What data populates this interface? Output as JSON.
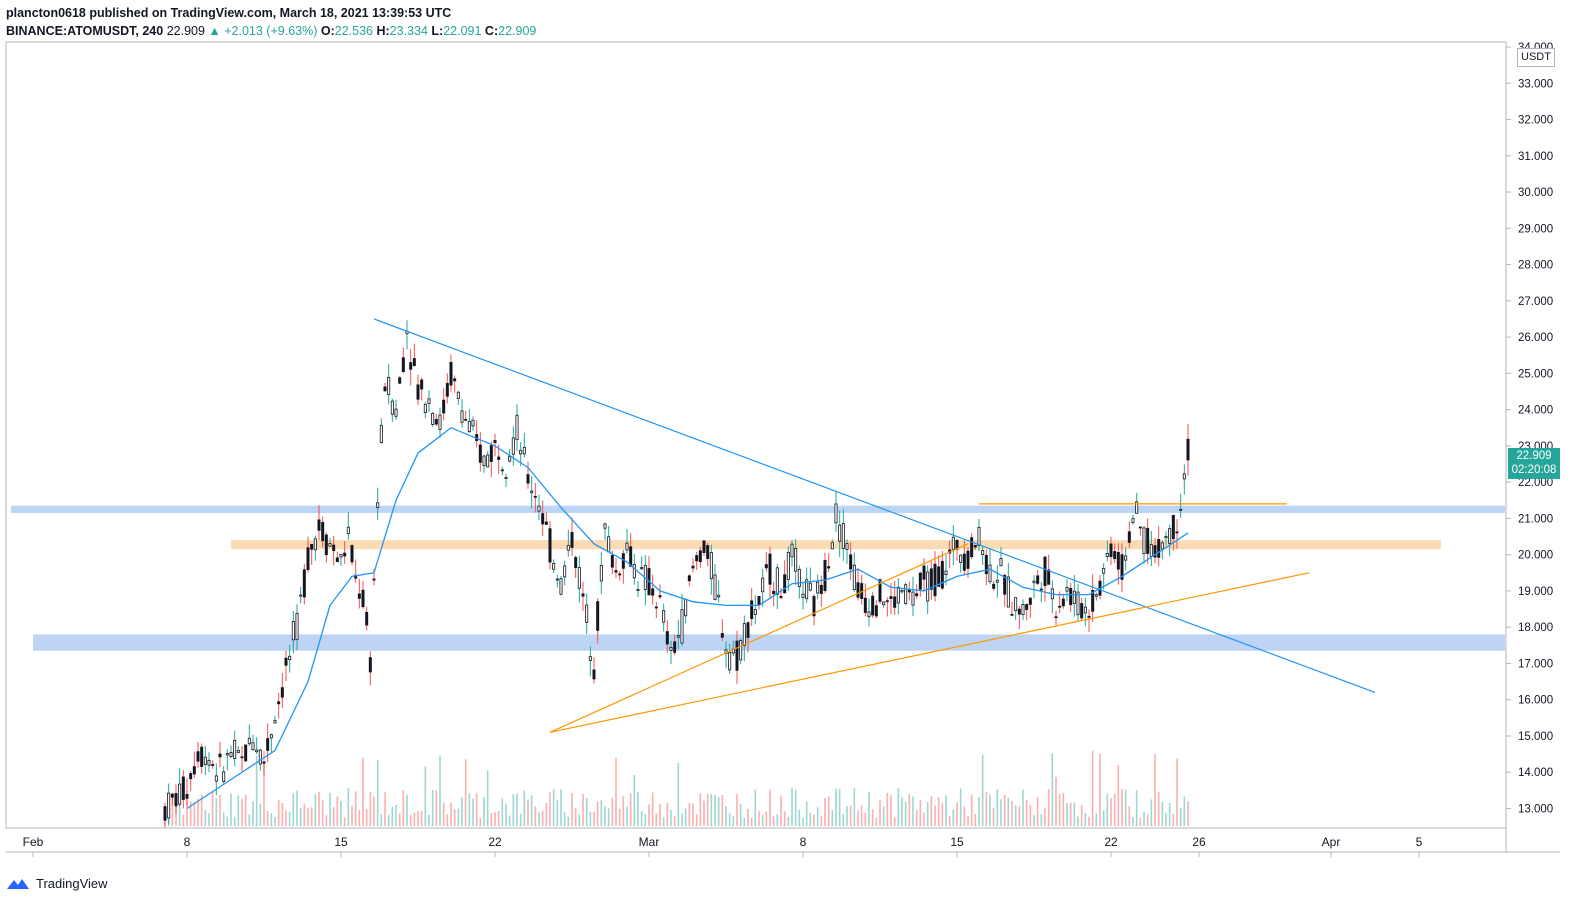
{
  "header": {
    "publisher_line": "plancton0618 published on TradingView.com, March 18, 2021 13:39:53 UTC",
    "symbol": "BINANCE:ATOMUSDT, 240",
    "last": "22.909",
    "change": "▲ +2.013 (+9.63%)",
    "o_label": "O:",
    "o": "22.536",
    "h_label": "H:",
    "h": "23.334",
    "l_label": "L:",
    "l": "22.091",
    "c_label": "C:",
    "c": "22.909"
  },
  "footer": {
    "brand": "TradingView"
  },
  "price_axis": {
    "unit": "USDT",
    "last_price": "22.909",
    "countdown": "02:20:08"
  },
  "colors": {
    "up": "#26a69a",
    "down": "#ef5350",
    "ma": "#2196f3",
    "trend_blue": "#2196f3",
    "trend_orange": "#ff9800",
    "zone_blue": "#b2cdf3",
    "zone_orange": "#f9d5a7"
  },
  "chart_data": {
    "type": "candlestick",
    "symbol": "BINANCE:ATOMUSDT",
    "timeframe": "240",
    "ylim": [
      12.6,
      34.0
    ],
    "y_ticks": [
      "13.000",
      "14.000",
      "15.000",
      "16.000",
      "17.000",
      "18.000",
      "19.000",
      "20.000",
      "21.000",
      "22.000",
      "23.000",
      "24.000",
      "25.000",
      "26.000",
      "27.000",
      "28.000",
      "29.000",
      "30.000",
      "31.000",
      "32.000",
      "33.000",
      "34.000"
    ],
    "x_ticks": [
      {
        "label": "Feb",
        "date": "2021-02-01"
      },
      {
        "label": "8",
        "date": "2021-02-08"
      },
      {
        "label": "15",
        "date": "2021-02-15"
      },
      {
        "label": "22",
        "date": "2021-02-22"
      },
      {
        "label": "Mar",
        "date": "2021-03-01"
      },
      {
        "label": "8",
        "date": "2021-03-08"
      },
      {
        "label": "15",
        "date": "2021-03-15"
      },
      {
        "label": "22",
        "date": "2021-03-22"
      },
      {
        "label": "26",
        "date": "2021-03-26"
      },
      {
        "label": "Apr",
        "date": "2021-04-01"
      },
      {
        "label": "5",
        "date": "2021-04-05"
      }
    ],
    "price_path": [
      [
        "2021-02-07 00:00",
        13.0
      ],
      [
        "2021-02-08 00:00",
        13.6
      ],
      [
        "2021-02-08 12:00",
        14.6
      ],
      [
        "2021-02-09 00:00",
        14.4
      ],
      [
        "2021-02-09 12:00",
        14.0
      ],
      [
        "2021-02-10 00:00",
        14.5
      ],
      [
        "2021-02-10 12:00",
        14.3
      ],
      [
        "2021-02-11 00:00",
        15.0
      ],
      [
        "2021-02-11 12:00",
        14.3
      ],
      [
        "2021-02-12 00:00",
        15.6
      ],
      [
        "2021-02-12 12:00",
        16.8
      ],
      [
        "2021-02-13 00:00",
        18.0
      ],
      [
        "2021-02-13 12:00",
        20.0
      ],
      [
        "2021-02-14 00:00",
        20.8
      ],
      [
        "2021-02-14 12:00",
        20.3
      ],
      [
        "2021-02-15 00:00",
        19.8
      ],
      [
        "2021-02-15 08:00",
        20.5
      ],
      [
        "2021-02-15 16:00",
        19.3
      ],
      [
        "2021-02-16 00:00",
        18.8
      ],
      [
        "2021-02-16 08:00",
        17.1
      ],
      [
        "2021-02-16 16:00",
        21.5
      ],
      [
        "2021-02-17 00:00",
        24.8
      ],
      [
        "2021-02-17 12:00",
        24.0
      ],
      [
        "2021-02-18 00:00",
        26.2
      ],
      [
        "2021-02-18 12:00",
        24.6
      ],
      [
        "2021-02-19 00:00",
        24.3
      ],
      [
        "2021-02-19 12:00",
        23.6
      ],
      [
        "2021-02-20 00:00",
        25.0
      ],
      [
        "2021-02-20 12:00",
        24.0
      ],
      [
        "2021-02-21 00:00",
        23.2
      ],
      [
        "2021-02-21 12:00",
        22.6
      ],
      [
        "2021-02-22 00:00",
        23.0
      ],
      [
        "2021-02-22 12:00",
        22.7
      ],
      [
        "2021-02-23 00:00",
        23.4
      ],
      [
        "2021-02-23 12:00",
        22.1
      ],
      [
        "2021-02-24 00:00",
        21.5
      ],
      [
        "2021-02-24 12:00",
        20.2
      ],
      [
        "2021-02-25 00:00",
        19.2
      ],
      [
        "2021-02-25 12:00",
        20.5
      ],
      [
        "2021-02-26 00:00",
        18.8
      ],
      [
        "2021-02-26 12:00",
        17.1
      ],
      [
        "2021-02-27 00:00",
        20.7
      ],
      [
        "2021-02-27 12:00",
        19.5
      ],
      [
        "2021-02-28 00:00",
        20.2
      ],
      [
        "2021-02-28 12:00",
        19.4
      ],
      [
        "2021-03-01 00:00",
        19.2
      ],
      [
        "2021-03-01 12:00",
        18.6
      ],
      [
        "2021-03-02 00:00",
        17.2
      ],
      [
        "2021-03-02 12:00",
        18.1
      ],
      [
        "2021-03-03 00:00",
        19.6
      ],
      [
        "2021-03-03 12:00",
        20.3
      ],
      [
        "2021-03-04 00:00",
        19.2
      ],
      [
        "2021-03-04 12:00",
        17.5
      ],
      [
        "2021-03-05 00:00",
        17.2
      ],
      [
        "2021-03-05 12:00",
        18.2
      ],
      [
        "2021-03-06 00:00",
        18.7
      ],
      [
        "2021-03-06 12:00",
        19.6
      ],
      [
        "2021-03-07 00:00",
        19.0
      ],
      [
        "2021-03-07 12:00",
        19.9
      ],
      [
        "2021-03-08 00:00",
        19.1
      ],
      [
        "2021-03-08 12:00",
        18.6
      ],
      [
        "2021-03-09 00:00",
        19.5
      ],
      [
        "2021-03-09 12:00",
        21.1
      ],
      [
        "2021-03-10 00:00",
        20.3
      ],
      [
        "2021-03-10 12:00",
        19.0
      ],
      [
        "2021-03-11 00:00",
        18.7
      ],
      [
        "2021-03-11 12:00",
        18.9
      ],
      [
        "2021-03-12 00:00",
        18.6
      ],
      [
        "2021-03-12 12:00",
        19.0
      ],
      [
        "2021-03-13 00:00",
        18.8
      ],
      [
        "2021-03-13 12:00",
        19.2
      ],
      [
        "2021-03-14 00:00",
        19.3
      ],
      [
        "2021-03-14 12:00",
        19.7
      ],
      [
        "2021-03-15 00:00",
        20.3
      ],
      [
        "2021-03-15 12:00",
        20.0
      ],
      [
        "2021-03-16 00:00",
        20.5
      ],
      [
        "2021-03-16 12:00",
        19.5
      ],
      [
        "2021-03-17 00:00",
        19.4
      ],
      [
        "2021-03-17 12:00",
        18.7
      ],
      [
        "2021-03-18 00:00",
        18.4
      ],
      [
        "2021-03-18 12:00",
        19.1
      ],
      [
        "2021-03-19 00:00",
        19.6
      ],
      [
        "2021-03-19 12:00",
        18.6
      ],
      [
        "2021-03-20 00:00",
        19.0
      ],
      [
        "2021-03-20 12:00",
        18.6
      ],
      [
        "2021-03-21 00:00",
        18.5
      ],
      [
        "2021-03-21 12:00",
        19.2
      ],
      [
        "2021-03-22 00:00",
        20.3
      ],
      [
        "2021-03-22 12:00",
        19.6
      ],
      [
        "2021-03-23 00:00",
        21.1
      ],
      [
        "2021-03-23 12:00",
        20.5
      ],
      [
        "2021-03-24 00:00",
        20.0
      ],
      [
        "2021-03-24 12:00",
        20.5
      ],
      [
        "2021-03-25 00:00",
        20.9
      ],
      [
        "2021-03-25 12:00",
        22.9
      ]
    ],
    "moving_average": [
      [
        "2021-02-08 00:00",
        13.0
      ],
      [
        "2021-02-10 00:00",
        13.8
      ],
      [
        "2021-02-12 00:00",
        14.6
      ],
      [
        "2021-02-13 12:00",
        16.5
      ],
      [
        "2021-02-14 12:00",
        18.6
      ],
      [
        "2021-02-15 12:00",
        19.4
      ],
      [
        "2021-02-16 12:00",
        19.5
      ],
      [
        "2021-02-17 12:00",
        21.5
      ],
      [
        "2021-02-18 12:00",
        22.8
      ],
      [
        "2021-02-20 00:00",
        23.5
      ],
      [
        "2021-02-22 00:00",
        23.0
      ],
      [
        "2021-02-23 12:00",
        22.4
      ],
      [
        "2021-02-25 00:00",
        21.3
      ],
      [
        "2021-02-26 12:00",
        20.3
      ],
      [
        "2021-02-28 00:00",
        19.8
      ],
      [
        "2021-03-01 12:00",
        19.0
      ],
      [
        "2021-03-03 00:00",
        18.7
      ],
      [
        "2021-03-04 12:00",
        18.6
      ],
      [
        "2021-03-06 00:00",
        18.6
      ],
      [
        "2021-03-07 12:00",
        19.2
      ],
      [
        "2021-03-09 00:00",
        19.3
      ],
      [
        "2021-03-10 12:00",
        19.6
      ],
      [
        "2021-03-12 00:00",
        19.1
      ],
      [
        "2021-03-13 12:00",
        19.0
      ],
      [
        "2021-03-15 00:00",
        19.4
      ],
      [
        "2021-03-16 12:00",
        19.6
      ],
      [
        "2021-03-18 00:00",
        19.1
      ],
      [
        "2021-03-19 12:00",
        18.9
      ],
      [
        "2021-03-21 00:00",
        18.9
      ],
      [
        "2021-03-22 12:00",
        19.4
      ],
      [
        "2021-03-24 00:00",
        20.0
      ],
      [
        "2021-03-25 12:00",
        20.6
      ]
    ],
    "trendlines": [
      {
        "color": "blue",
        "from": [
          "2021-02-16 12:00",
          26.5
        ],
        "to": [
          "2021-04-03 00:00",
          16.2
        ]
      },
      {
        "color": "orange",
        "from": [
          "2021-02-24 12:00",
          15.1
        ],
        "to": [
          "2021-03-15 12:00",
          20.3
        ]
      },
      {
        "color": "orange",
        "from": [
          "2021-02-24 12:00",
          15.1
        ],
        "to": [
          "2021-03-31 00:00",
          19.5
        ]
      },
      {
        "color": "orange",
        "from": [
          "2021-03-16 00:00",
          21.4
        ],
        "to": [
          "2021-03-30 00:00",
          21.4
        ]
      }
    ],
    "zones": [
      {
        "color": "blue",
        "from": "2021-01-31 00:00",
        "to": "2021-04-13 00:00",
        "ymin": 21.15,
        "ymax": 21.35
      },
      {
        "color": "orange",
        "from": "2021-02-10 00:00",
        "to": "2021-04-06 00:00",
        "ymin": 20.15,
        "ymax": 20.4
      },
      {
        "color": "blue",
        "from": "2021-02-01 00:00",
        "to": "2021-04-13 00:00",
        "ymin": 17.35,
        "ymax": 17.8
      }
    ]
  }
}
